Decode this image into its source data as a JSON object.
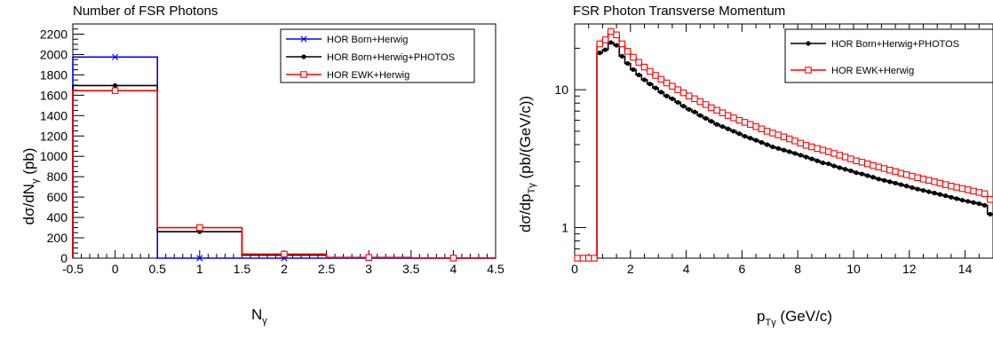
{
  "chart_data": [
    {
      "type": "line",
      "step": true,
      "title": "Number of FSR Photons",
      "xlabel": "N",
      "xlabel_sub": "γ",
      "ylabel_parts": [
        "dσ/dN",
        "γ",
        " (pb)"
      ],
      "xlim": [
        -0.5,
        4.5
      ],
      "ylim": [
        0,
        2300
      ],
      "yscale": "linear",
      "xticks": [
        -0.5,
        0,
        0.5,
        1,
        1.5,
        2,
        2.5,
        3,
        3.5,
        4,
        4.5
      ],
      "xtick_labels": [
        "-0.5",
        "0",
        "0.5",
        "1",
        "1.5",
        "2",
        "2.5",
        "3",
        "3.5",
        "4",
        "4.5"
      ],
      "yticks": [
        0,
        200,
        400,
        600,
        800,
        1000,
        1200,
        1400,
        1600,
        1800,
        2000,
        2200
      ],
      "ytick_labels": [
        "0",
        "200",
        "400",
        "600",
        "800",
        "1000",
        "1200",
        "1400",
        "1600",
        "1800",
        "2000",
        "2200"
      ],
      "legend_position": "top-right",
      "bin_edges": [
        -0.5,
        0.5,
        1.5,
        2.5,
        3.5,
        4.5
      ],
      "series": [
        {
          "name": "HOR Born+Herwig",
          "color": "#0000ff",
          "marker": "star",
          "values": [
            1975,
            0,
            0,
            0,
            0
          ]
        },
        {
          "name": "HOR Born+Herwig+PHOTOS",
          "color": "#000000",
          "marker": "circle",
          "values": [
            1695,
            260,
            30,
            5,
            1
          ]
        },
        {
          "name": "HOR EWK+Herwig",
          "color": "#ff0000",
          "marker": "open-square",
          "values": [
            1645,
            300,
            40,
            7,
            1
          ]
        }
      ]
    },
    {
      "type": "line",
      "step": true,
      "title": "FSR Photon Transverse Momentum",
      "xlabel": "p",
      "xlabel_sub": "Tγ",
      "xlabel_tail": " (GeV/c)",
      "ylabel_parts": [
        "dσ/dp",
        "Tγ",
        " (pb/(GeV/c))"
      ],
      "xlim": [
        0,
        15
      ],
      "ylim": [
        0.6,
        30
      ],
      "yscale": "log",
      "xticks": [
        0,
        2,
        4,
        6,
        8,
        10,
        12,
        14
      ],
      "xtick_labels": [
        "0",
        "2",
        "4",
        "6",
        "8",
        "10",
        "12",
        "14"
      ],
      "yticks": [
        1,
        10
      ],
      "ytick_labels": [
        "1",
        "10"
      ],
      "legend_position": "top-right",
      "bin_width": 0.2,
      "series": [
        {
          "name": "HOR Born+Herwig+PHOTOS",
          "color": "#000000",
          "marker": "circle",
          "x": [
            0.1,
            0.3,
            0.5,
            0.7,
            0.9,
            1.1,
            1.3,
            1.5,
            1.7,
            1.9,
            2.1,
            2.3,
            2.5,
            2.7,
            2.9,
            3.1,
            3.3,
            3.5,
            3.7,
            3.9,
            4.1,
            4.3,
            4.5,
            4.7,
            4.9,
            5.1,
            5.3,
            5.5,
            5.7,
            5.9,
            6.1,
            6.3,
            6.5,
            6.7,
            6.9,
            7.1,
            7.3,
            7.5,
            7.7,
            7.9,
            8.1,
            8.3,
            8.5,
            8.7,
            8.9,
            9.1,
            9.3,
            9.5,
            9.7,
            9.9,
            10.1,
            10.3,
            10.5,
            10.7,
            10.9,
            11.1,
            11.3,
            11.5,
            11.7,
            11.9,
            12.1,
            12.3,
            12.5,
            12.7,
            12.9,
            13.1,
            13.3,
            13.5,
            13.7,
            13.9,
            14.1,
            14.3,
            14.5,
            14.7,
            14.9
          ],
          "values": [
            0.58,
            0.58,
            0.58,
            0.58,
            18.5,
            19.5,
            22.0,
            21.0,
            17.5,
            15.5,
            14.0,
            12.8,
            11.8,
            11.0,
            10.3,
            9.6,
            9.0,
            8.6,
            8.1,
            7.6,
            7.2,
            6.9,
            6.5,
            6.2,
            5.9,
            5.6,
            5.4,
            5.2,
            5.0,
            4.8,
            4.6,
            4.45,
            4.3,
            4.15,
            4.0,
            3.85,
            3.75,
            3.65,
            3.55,
            3.45,
            3.35,
            3.25,
            3.15,
            3.05,
            2.95,
            2.9,
            2.8,
            2.72,
            2.65,
            2.58,
            2.5,
            2.45,
            2.38,
            2.32,
            2.25,
            2.2,
            2.15,
            2.1,
            2.05,
            2.0,
            1.95,
            1.9,
            1.86,
            1.82,
            1.78,
            1.74,
            1.7,
            1.66,
            1.62,
            1.58,
            1.55,
            1.52,
            1.49,
            1.45,
            1.25
          ]
        },
        {
          "name": "HOR EWK+Herwig",
          "color": "#ff0000",
          "marker": "open-square",
          "x": [
            0.1,
            0.3,
            0.5,
            0.7,
            0.9,
            1.1,
            1.3,
            1.5,
            1.7,
            1.9,
            2.1,
            2.3,
            2.5,
            2.7,
            2.9,
            3.1,
            3.3,
            3.5,
            3.7,
            3.9,
            4.1,
            4.3,
            4.5,
            4.7,
            4.9,
            5.1,
            5.3,
            5.5,
            5.7,
            5.9,
            6.1,
            6.3,
            6.5,
            6.7,
            6.9,
            7.1,
            7.3,
            7.5,
            7.7,
            7.9,
            8.1,
            8.3,
            8.5,
            8.7,
            8.9,
            9.1,
            9.3,
            9.5,
            9.7,
            9.9,
            10.1,
            10.3,
            10.5,
            10.7,
            10.9,
            11.1,
            11.3,
            11.5,
            11.7,
            11.9,
            12.1,
            12.3,
            12.5,
            12.7,
            12.9,
            13.1,
            13.3,
            13.5,
            13.7,
            13.9,
            14.1,
            14.3,
            14.5,
            14.7,
            14.9
          ],
          "values": [
            0.58,
            0.58,
            0.58,
            0.58,
            21.5,
            23.0,
            26.5,
            25.0,
            21.5,
            19.0,
            17.2,
            15.8,
            14.6,
            13.6,
            12.7,
            11.9,
            11.2,
            10.6,
            10.0,
            9.5,
            9.0,
            8.6,
            8.2,
            7.8,
            7.4,
            7.1,
            6.8,
            6.5,
            6.25,
            6.0,
            5.8,
            5.6,
            5.4,
            5.2,
            5.0,
            4.85,
            4.7,
            4.55,
            4.4,
            4.25,
            4.1,
            3.95,
            3.85,
            3.75,
            3.65,
            3.55,
            3.45,
            3.35,
            3.25,
            3.15,
            3.05,
            2.98,
            2.9,
            2.82,
            2.75,
            2.68,
            2.61,
            2.55,
            2.48,
            2.42,
            2.36,
            2.3,
            2.25,
            2.2,
            2.15,
            2.1,
            2.05,
            2.0,
            1.96,
            1.92,
            1.88,
            1.84,
            1.8,
            1.76,
            1.6
          ]
        }
      ]
    }
  ]
}
